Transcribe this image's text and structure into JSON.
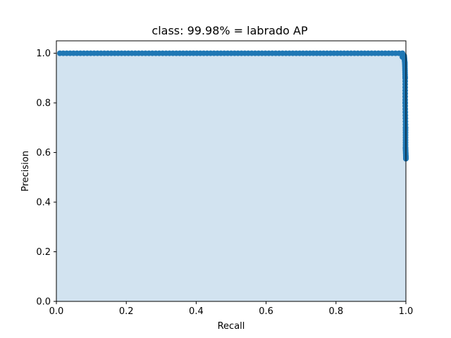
{
  "chart_data": {
    "type": "area",
    "title": "class: 99.98% = labrado AP",
    "xlabel": "Recall",
    "ylabel": "Precision",
    "xlim": [
      0.0,
      1.0
    ],
    "ylim": [
      0.0,
      1.05
    ],
    "xticks": [
      0.0,
      0.2,
      0.4,
      0.6,
      0.8,
      1.0
    ],
    "yticks": [
      0.0,
      0.2,
      0.4,
      0.6,
      0.8,
      1.0
    ],
    "xtick_labels": [
      "0.0",
      "0.2",
      "0.4",
      "0.6",
      "0.8",
      "1.0"
    ],
    "ytick_labels": [
      "0.0",
      "0.2",
      "0.4",
      "0.6",
      "0.8",
      "1.0"
    ],
    "grid": false,
    "colors": {
      "line": "#1f77b4",
      "fill": "#d2e3f0"
    },
    "series": [
      {
        "recall_start": 0.01,
        "recall_plateau_end": 0.99,
        "precision_plateau": 1.0,
        "tail": [
          [
            0.99,
            0.985
          ],
          [
            0.995,
            0.99
          ],
          [
            0.997,
            0.96
          ],
          [
            0.998,
            0.9
          ],
          [
            0.998,
            0.8
          ],
          [
            0.999,
            0.7
          ],
          [
            0.999,
            0.62
          ],
          [
            1.0,
            0.58
          ],
          [
            1.0,
            0.575
          ]
        ]
      }
    ]
  }
}
